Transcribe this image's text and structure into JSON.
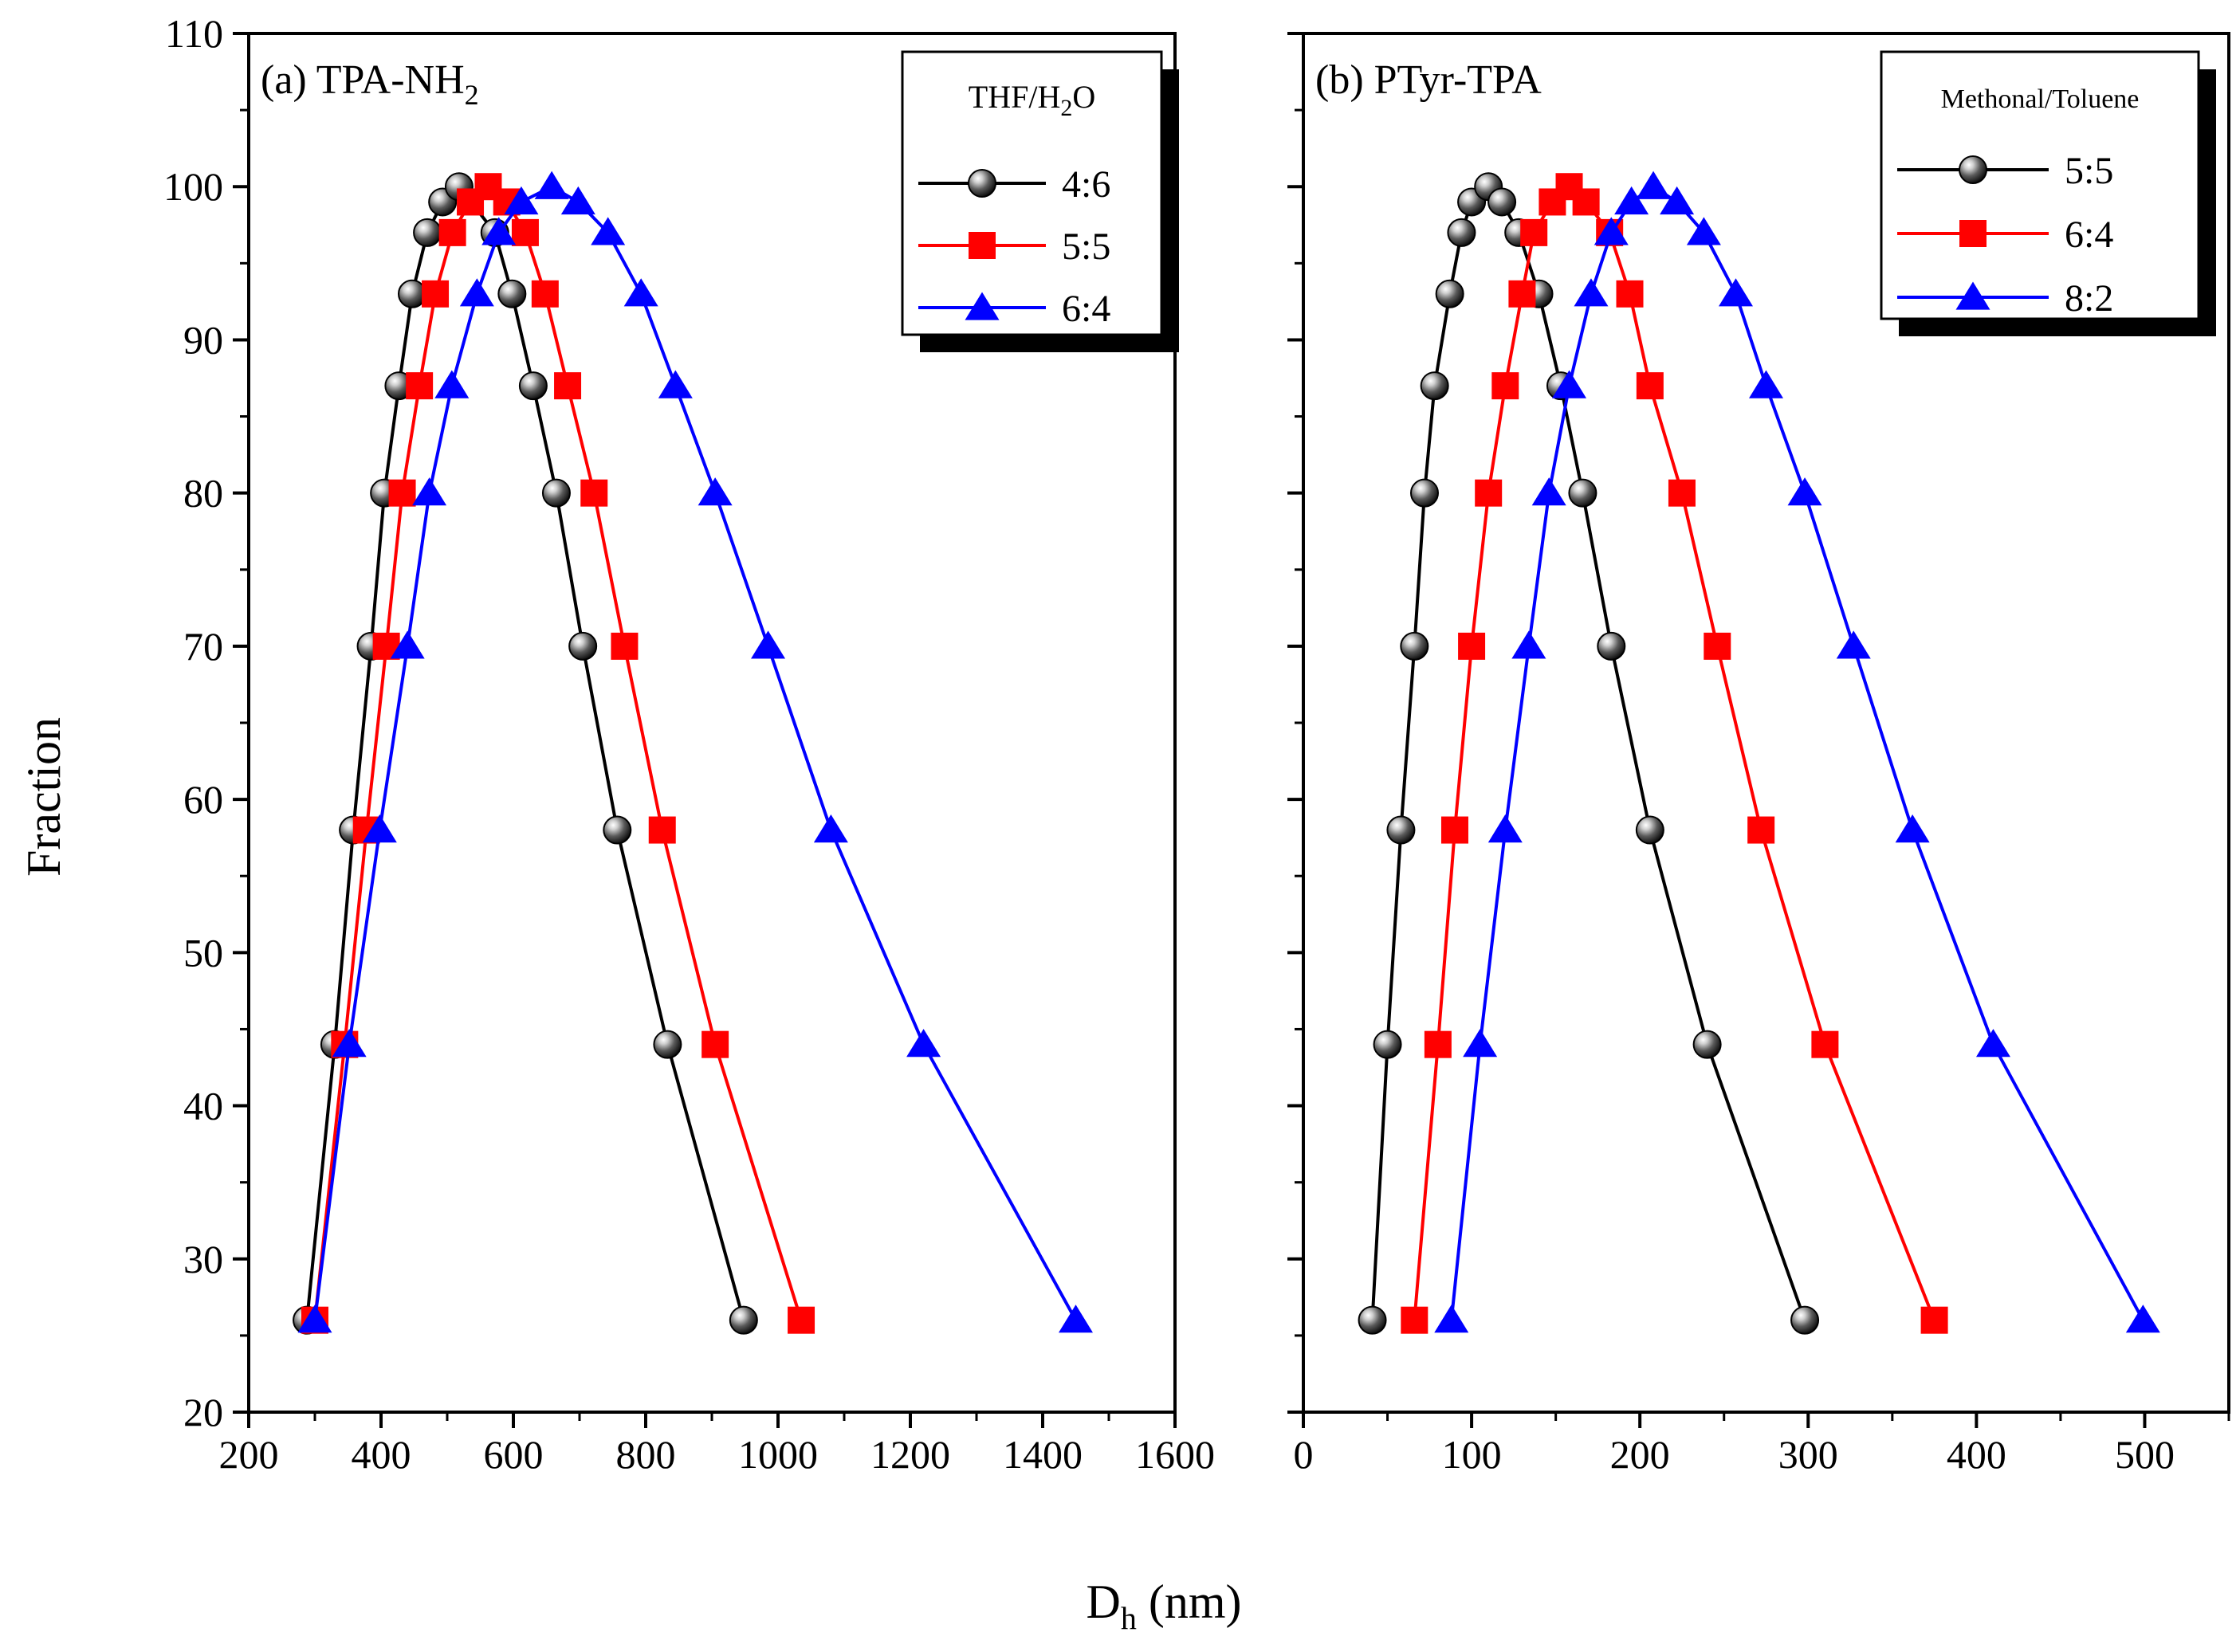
{
  "figure": {
    "shared_xlabel_main": "D",
    "shared_xlabel_sub": "h",
    "shared_xlabel_unit": " (nm)"
  },
  "chart_data": [
    {
      "type": "line",
      "panel_id": "a",
      "title_prefix": "(a) TPA-NH",
      "title_sub": "2",
      "xlabel": "D_h (nm)",
      "ylabel": "Fraction",
      "xlim": [
        200,
        1600
      ],
      "ylim": [
        20,
        110
      ],
      "xticks": [
        200,
        400,
        600,
        800,
        1000,
        1200,
        1400,
        1600
      ],
      "yticks": [
        20,
        30,
        40,
        50,
        60,
        70,
        80,
        90,
        100,
        110
      ],
      "legend": {
        "title_main": "THF/H",
        "title_sub": "2",
        "title_tail": "O",
        "position": "top-right"
      },
      "series": [
        {
          "name": "4:6",
          "color": "#000000",
          "marker": "sphere",
          "x": [
            288,
            330,
            358,
            385,
            405,
            427,
            447,
            470,
            493,
            518,
            572,
            598,
            630,
            665,
            705,
            757,
            833,
            948
          ],
          "y": [
            26,
            44,
            58,
            70,
            80,
            87,
            93,
            97,
            99,
            100,
            97,
            93,
            87,
            80,
            70,
            58,
            44,
            26
          ]
        },
        {
          "name": "5:5",
          "color": "#ff0000",
          "marker": "square",
          "x": [
            300,
            345,
            378,
            408,
            432,
            458,
            482,
            508,
            535,
            562,
            590,
            618,
            648,
            682,
            722,
            768,
            825,
            905,
            1035
          ],
          "y": [
            26,
            44,
            58,
            70,
            80,
            87,
            93,
            97,
            99,
            100,
            99,
            97,
            93,
            87,
            80,
            70,
            58,
            44,
            26
          ]
        },
        {
          "name": "6:4",
          "color": "#0000ff",
          "marker": "triangle",
          "x": [
            300,
            352,
            398,
            440,
            473,
            507,
            545,
            578,
            612,
            658,
            698,
            743,
            793,
            845,
            905,
            985,
            1080,
            1220,
            1450
          ],
          "y": [
            26,
            44,
            58,
            70,
            80,
            87,
            93,
            97,
            99,
            100,
            99,
            97,
            93,
            87,
            80,
            70,
            58,
            44,
            26
          ]
        }
      ]
    },
    {
      "type": "line",
      "panel_id": "b",
      "title_prefix": "(b) PTyr-TPA",
      "title_sub": "",
      "xlabel": "D_h (nm)",
      "ylabel": "Fraction",
      "xlim": [
        0,
        550
      ],
      "ylim": [
        20,
        110
      ],
      "xticks": [
        0,
        100,
        200,
        300,
        400,
        500
      ],
      "yticks": [
        20,
        30,
        40,
        50,
        60,
        70,
        80,
        90,
        100,
        110
      ],
      "legend": {
        "title_main": "Methonal/Toluene",
        "title_sub": "",
        "title_tail": "",
        "position": "top-right"
      },
      "series": [
        {
          "name": "5:5",
          "color": "#000000",
          "marker": "sphere",
          "x": [
            41,
            50,
            58,
            66,
            72,
            78,
            87,
            94,
            100,
            110,
            118,
            128,
            140,
            153,
            166,
            183,
            206,
            240,
            298
          ],
          "y": [
            26,
            44,
            58,
            70,
            80,
            87,
            93,
            97,
            99,
            100,
            99,
            97,
            93,
            87,
            80,
            70,
            58,
            44,
            26
          ]
        },
        {
          "name": "6:4",
          "color": "#ff0000",
          "marker": "square",
          "x": [
            66,
            80,
            90,
            100,
            110,
            120,
            130,
            137,
            148,
            158,
            168,
            182,
            194,
            206,
            225,
            246,
            272,
            310,
            375
          ],
          "y": [
            26,
            44,
            58,
            70,
            80,
            87,
            93,
            97,
            99,
            100,
            99,
            97,
            93,
            87,
            80,
            70,
            58,
            44,
            26
          ]
        },
        {
          "name": "8:2",
          "color": "#0000ff",
          "marker": "triangle",
          "x": [
            88,
            105,
            120,
            134,
            146,
            158,
            171,
            183,
            195,
            208,
            222,
            238,
            257,
            275,
            298,
            327,
            362,
            410,
            499
          ],
          "y": [
            26,
            44,
            58,
            70,
            80,
            87,
            93,
            97,
            99,
            100,
            99,
            97,
            93,
            87,
            80,
            70,
            58,
            44,
            26
          ]
        }
      ]
    }
  ]
}
